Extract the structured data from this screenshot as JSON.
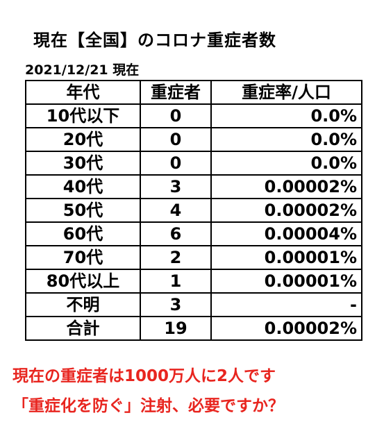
{
  "title": "現在【全国】のコロナ重症者数",
  "date": "2021/12/21 現在",
  "table": {
    "headers": [
      "年代",
      "重症者",
      "重症率/人口"
    ],
    "rows": [
      {
        "age": "10代以下",
        "count": "0",
        "rate": "0.0%"
      },
      {
        "age": "20代",
        "count": "0",
        "rate": "0.0%"
      },
      {
        "age": "30代",
        "count": "0",
        "rate": "0.0%"
      },
      {
        "age": "40代",
        "count": "3",
        "rate": "0.00002%"
      },
      {
        "age": "50代",
        "count": "4",
        "rate": "0.00002%"
      },
      {
        "age": "60代",
        "count": "6",
        "rate": "0.00004%"
      },
      {
        "age": "70代",
        "count": "2",
        "rate": "0.00001%"
      },
      {
        "age": "80代以上",
        "count": "1",
        "rate": "0.00001%"
      },
      {
        "age": "不明",
        "count": "3",
        "rate": "-"
      }
    ],
    "total": {
      "age": "合計",
      "count": "19",
      "rate": "0.00002%"
    }
  },
  "notes": [
    "現在の重症者は1000万人に2人です",
    "「重症化を防ぐ」注射、必要ですか？"
  ],
  "colors": {
    "note_text": "#e8251f",
    "text": "#000000",
    "background": "#ffffff"
  }
}
